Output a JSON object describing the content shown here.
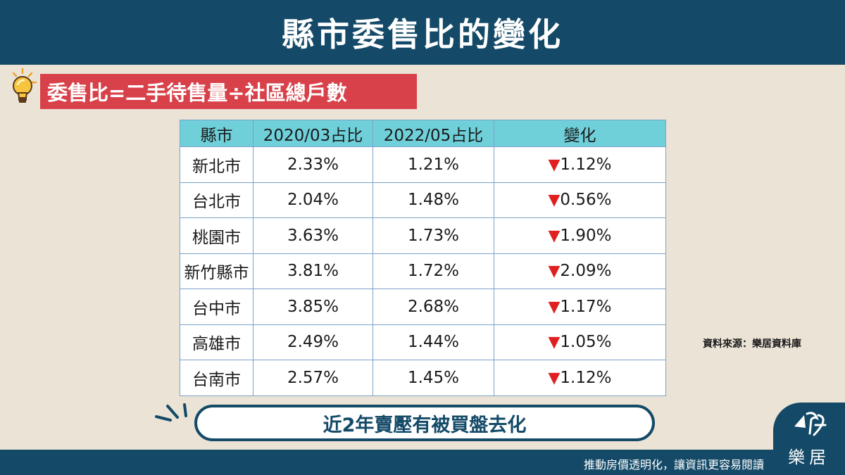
{
  "title": "縣市委售比的變化",
  "formula": "委售比=二手待售量÷社區總戶數",
  "table": {
    "headers": [
      "縣市",
      "2020/03占比",
      "2022/05占比",
      "變化"
    ],
    "rows": [
      {
        "city": "新北市",
        "y2020": "2.33%",
        "y2022": "1.21%",
        "change": "1.12%"
      },
      {
        "city": "台北市",
        "y2020": "2.04%",
        "y2022": "1.48%",
        "change": "0.56%"
      },
      {
        "city": "桃園市",
        "y2020": "3.63%",
        "y2022": "1.73%",
        "change": "1.90%"
      },
      {
        "city": "新竹縣市",
        "y2020": "3.81%",
        "y2022": "1.72%",
        "change": "2.09%"
      },
      {
        "city": "台中市",
        "y2020": "3.85%",
        "y2022": "2.68%",
        "change": "1.17%"
      },
      {
        "city": "高雄市",
        "y2020": "2.49%",
        "y2022": "1.44%",
        "change": "1.05%"
      },
      {
        "city": "台南市",
        "y2020": "2.57%",
        "y2022": "1.45%",
        "change": "1.12%"
      }
    ],
    "change_marker": "▼",
    "change_color": "#e02020"
  },
  "source": "資料來源：樂居資料庫",
  "conclusion": "近2年賣壓有被買盤去化",
  "footer_slogan": "推動房價透明化，讓資訊更容易閱讀",
  "logo_text": "樂居",
  "icons": {
    "idea": "lightbulb-icon",
    "emphasis": "spark-lines-icon",
    "brand": "logo-icon"
  },
  "colors": {
    "navy": "#144a68",
    "red_banner": "#d8414a",
    "table_header": "#6fd0da",
    "background": "#ebe4d6"
  }
}
